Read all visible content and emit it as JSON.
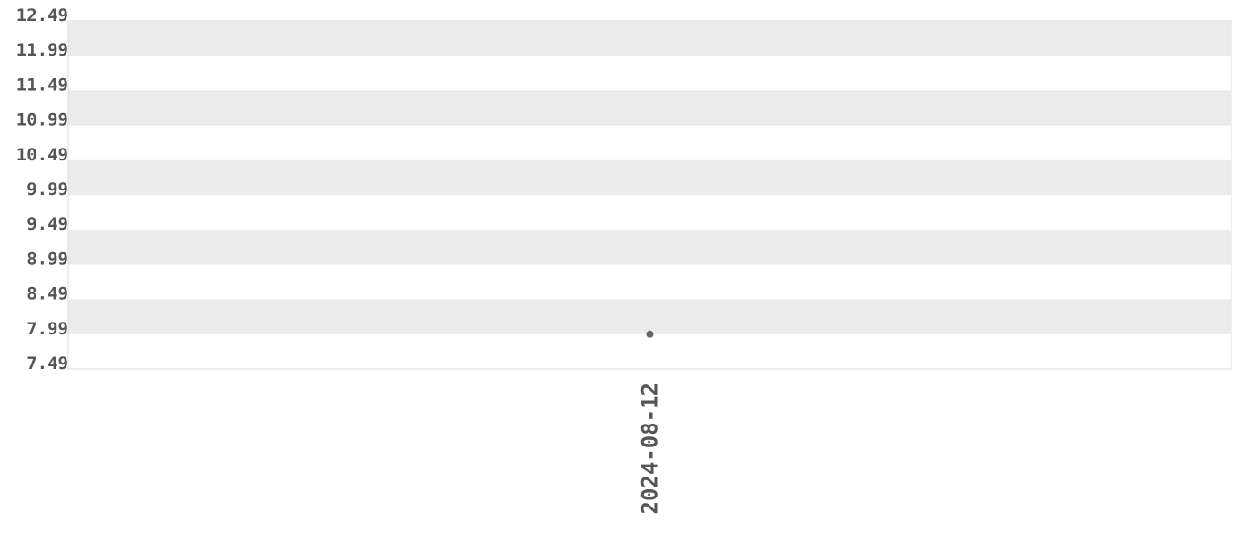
{
  "chart_data": {
    "type": "scatter",
    "title": "",
    "xlabel": "",
    "ylabel": "",
    "x_categories": [
      "2024-08-12"
    ],
    "points": [
      {
        "x": "2024-08-12",
        "y": 7.99
      }
    ],
    "ylim": [
      7.49,
      12.49
    ],
    "y_ticks": [
      "12.49",
      "11.99",
      "11.49",
      "10.99",
      "10.49",
      "9.99",
      "9.49",
      "8.99",
      "8.49",
      "7.99",
      "7.49"
    ],
    "grid": "alternating horizontal bands",
    "legend": "none",
    "colors": {
      "band": "#ebebeb",
      "point": "#666666",
      "text": "#555555",
      "border": "#dddddd"
    }
  }
}
